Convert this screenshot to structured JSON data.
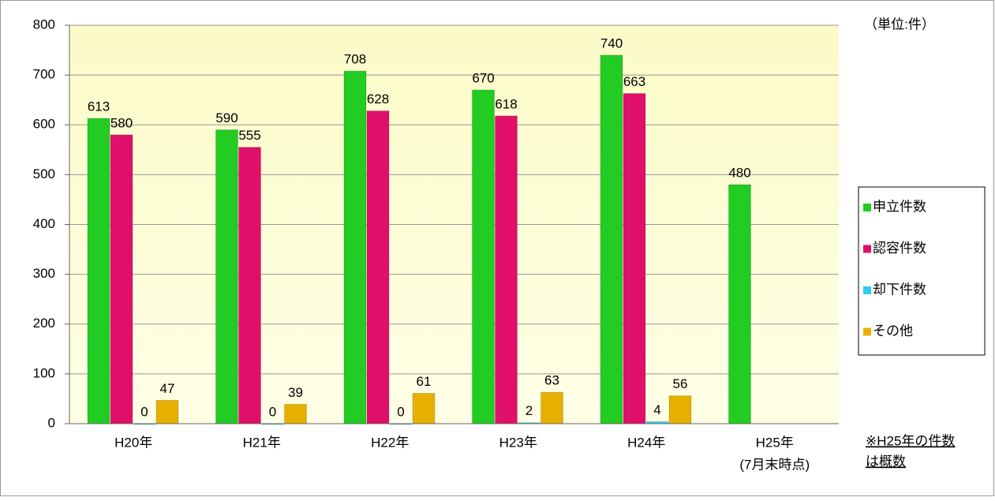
{
  "chart_data": {
    "type": "bar",
    "categories": [
      "H20年",
      "H21年",
      "H22年",
      "H23年",
      "H24年",
      "H25年"
    ],
    "category_note": "(7月末時点)",
    "series": [
      {
        "name": "申立件数",
        "color": "#22cc22",
        "values": [
          613,
          590,
          708,
          670,
          740,
          480
        ]
      },
      {
        "name": "認容件数",
        "color": "#e0106a",
        "values": [
          580,
          555,
          628,
          618,
          663,
          null
        ]
      },
      {
        "name": "却下件数",
        "color": "#33ccee",
        "values": [
          0,
          0,
          0,
          2,
          4,
          null
        ]
      },
      {
        "name": "その他",
        "color": "#e6b000",
        "values": [
          47,
          39,
          61,
          63,
          56,
          null
        ]
      }
    ],
    "ylim": [
      0,
      800
    ],
    "yticks": [
      0,
      100,
      200,
      300,
      400,
      500,
      600,
      700,
      800
    ],
    "grid": true,
    "unit_label": "（単位:件）",
    "notes": [
      "※H25年の件数",
      "は概数"
    ],
    "legend": "right"
  }
}
